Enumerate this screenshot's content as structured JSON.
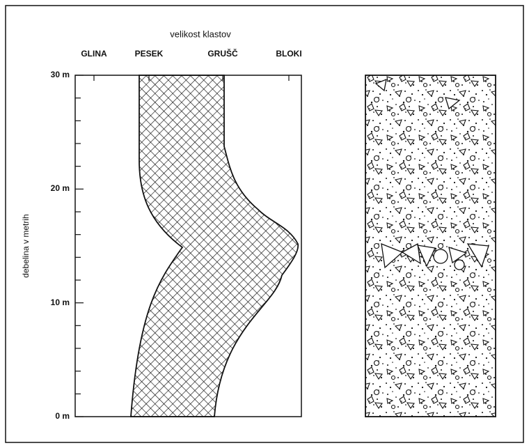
{
  "title": "velikost klastov",
  "columns": [
    "GLINA",
    "PESEK",
    "GRUŠČ",
    "BLOKI"
  ],
  "axis": {
    "label": "debelina v metrih",
    "ticks": [
      "0 m",
      "10 m",
      "20 m",
      "30 m"
    ]
  }
}
